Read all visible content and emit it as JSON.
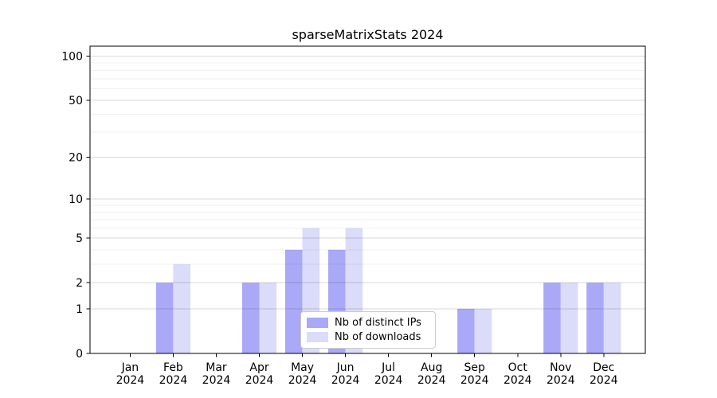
{
  "chart_data": {
    "type": "bar",
    "title": "sparseMatrixStats 2024",
    "xlabel": "",
    "ylabel": "",
    "yscale": "log1p",
    "ylim": [
      0,
      117
    ],
    "grid": true,
    "yticks": [
      0,
      1,
      2,
      5,
      10,
      20,
      50,
      100
    ],
    "minor_gridlines": [
      3,
      4,
      6,
      7,
      8,
      9,
      30,
      40,
      60,
      70,
      80,
      90
    ],
    "year": "2024",
    "categories": [
      "Jan",
      "Feb",
      "Mar",
      "Apr",
      "May",
      "Jun",
      "Jul",
      "Aug",
      "Sep",
      "Oct",
      "Nov",
      "Dec"
    ],
    "series": [
      {
        "name": "Nb of distinct IPs",
        "color": "#a9a9f7",
        "values": [
          0,
          2,
          0,
          2,
          4,
          4,
          0,
          0,
          1,
          0,
          2,
          2
        ]
      },
      {
        "name": "Nb of downloads",
        "color": "#dbdbfa",
        "values": [
          0,
          3,
          0,
          2,
          6,
          6,
          0,
          0,
          1,
          0,
          2,
          2
        ]
      }
    ],
    "legend": {
      "position": "lower center",
      "entries": [
        "Nb of distinct IPs",
        "Nb of downloads"
      ]
    },
    "colors": {
      "spine": "#000000",
      "major_grid": "rgba(0,0,0,0.15)",
      "minor_grid": "rgba(0,0,0,0.055)",
      "text": "#000000",
      "background": "#ffffff"
    }
  }
}
